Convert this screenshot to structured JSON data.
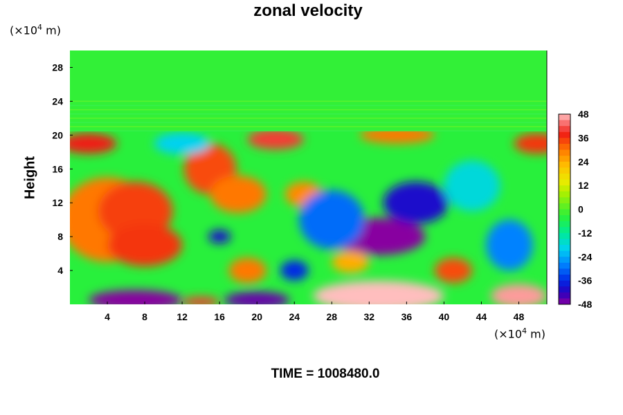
{
  "chart_data": {
    "type": "heatmap",
    "title": "zonal velocity",
    "ylabel": "Height",
    "xlabel": "",
    "x_unit_prefix": "(×10",
    "x_unit_exp": "4",
    "x_unit_suffix": " m)",
    "y_unit_prefix": "(×10",
    "y_unit_exp": "4",
    "y_unit_suffix": " m)",
    "xlim": [
      0,
      51
    ],
    "ylim": [
      0,
      30
    ],
    "x_ticks": [
      4,
      8,
      12,
      16,
      20,
      24,
      28,
      32,
      36,
      40,
      44,
      48
    ],
    "y_ticks": [
      4,
      8,
      12,
      16,
      20,
      24,
      28
    ],
    "colorbar": {
      "range": [
        -48,
        48
      ],
      "ticks": [
        48,
        36,
        24,
        12,
        0,
        -12,
        -24,
        -36,
        -48
      ]
    },
    "regions": [
      {
        "x": 4,
        "y": 10,
        "value": 30
      },
      {
        "x": 7,
        "y": 11,
        "value": 35
      },
      {
        "x": 8,
        "y": 7,
        "value": 36
      },
      {
        "x": 15,
        "y": 16,
        "value": 34
      },
      {
        "x": 18,
        "y": 13,
        "value": 30
      },
      {
        "x": 22,
        "y": 19.5,
        "value": 40
      },
      {
        "x": 2,
        "y": 19,
        "value": 38
      },
      {
        "x": 50,
        "y": 19,
        "value": 36
      },
      {
        "x": 25,
        "y": 13,
        "value": 28
      },
      {
        "x": 19,
        "y": 4,
        "value": 30
      },
      {
        "x": 33,
        "y": 8,
        "value": -48
      },
      {
        "x": 37,
        "y": 12,
        "value": -40
      },
      {
        "x": 28,
        "y": 10,
        "value": -30
      },
      {
        "x": 47,
        "y": 7,
        "value": -28
      },
      {
        "x": 7,
        "y": 0.5,
        "value": -48
      },
      {
        "x": 20,
        "y": 0.5,
        "value": -46
      },
      {
        "x": 33,
        "y": 1,
        "value": 48
      },
      {
        "x": 48,
        "y": 1,
        "value": 46
      },
      {
        "x": 41,
        "y": 4,
        "value": 34
      },
      {
        "x": 14,
        "y": 0.3,
        "value": 40
      },
      {
        "x": 16,
        "y": 8,
        "value": -40
      },
      {
        "x": 24,
        "y": 4,
        "value": -36
      },
      {
        "x": 12,
        "y": 19,
        "value": -20
      },
      {
        "x": 35,
        "y": 20,
        "value": 30
      },
      {
        "x": 30,
        "y": 5,
        "value": 24
      },
      {
        "x": 43,
        "y": 14,
        "value": -18
      }
    ],
    "grid": false,
    "legend": "right"
  },
  "footer": {
    "time_label": "TIME = 1008480.0"
  }
}
